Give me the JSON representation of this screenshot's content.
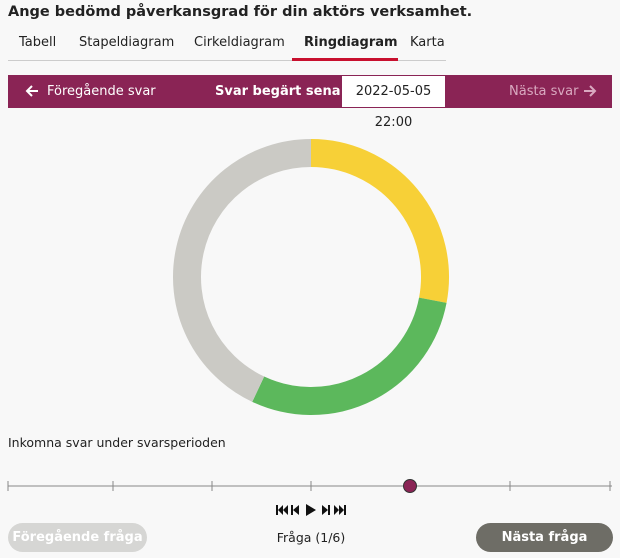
{
  "header": {
    "title": "Ange bedömd påverkansgrad för din aktörs verksamhet."
  },
  "tabs": [
    "Tabell",
    "Stapeldiagram",
    "Cirkeldiagram",
    "Ringdiagram",
    "Karta"
  ],
  "navigation": {
    "previous": "Föregående svar",
    "requested_label": "Svar begärt senast:",
    "requested_at": "2022-05-05 22:00",
    "next": "Nästa svar"
  },
  "chart_data": {
    "type": "donut",
    "values": [
      28,
      29,
      43
    ],
    "colors": [
      "#f7d037",
      "#5cb85c",
      "#cbcac5"
    ]
  },
  "timeline": {
    "label": "Inkomna svar under svarsperioden"
  },
  "footer": {
    "previous_question": "Föregående fråga",
    "question_counter": "Fråga (1/6)",
    "next_question": "Nästa fråga"
  }
}
